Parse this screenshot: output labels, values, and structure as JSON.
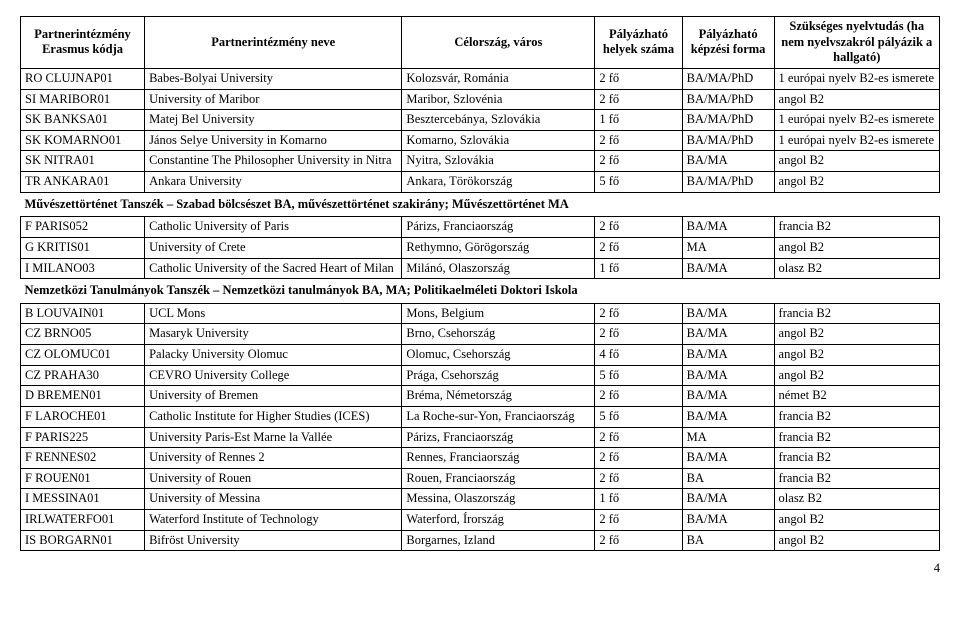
{
  "header": {
    "cols": [
      "Partnerintézmény Erasmus kódja",
      "Partnerintézmény neve",
      "Célország, város",
      "Pályázható helyek száma",
      "Pályázható képzési forma",
      "Szükséges nyelvtudás (ha nem nyelvszakról pályázik a hallgató)"
    ]
  },
  "sections": [
    {
      "title": null,
      "rows": [
        [
          "RO CLUJNAP01",
          "Babes-Bolyai University",
          "Kolozsvár, Románia",
          "2 fő",
          "BA/MA/PhD",
          "1 európai nyelv B2-es ismerete"
        ],
        [
          "SI MARIBOR01",
          "University of Maribor",
          "Maribor, Szlovénia",
          "2 fő",
          "BA/MA/PhD",
          "angol B2"
        ],
        [
          "SK BANKSA01",
          "Matej Bel University",
          "Besztercebánya, Szlovákia",
          "1 fő",
          "BA/MA/PhD",
          "1 európai nyelv B2-es ismerete"
        ],
        [
          "SK KOMARNO01",
          "János Selye University in Komarno",
          "Komarno, Szlovákia",
          "2 fő",
          "BA/MA/PhD",
          "1 európai nyelv B2-es ismerete"
        ],
        [
          "SK NITRA01",
          "Constantine The Philosopher University in Nitra",
          "Nyitra, Szlovákia",
          "2 fő",
          "BA/MA",
          "angol B2"
        ],
        [
          "TR ANKARA01",
          "Ankara University",
          "Ankara, Törökország",
          "5 fő",
          "BA/MA/PhD",
          "angol B2"
        ]
      ]
    },
    {
      "title": "Művészettörténet Tanszék – Szabad bölcsészet BA, művészettörténet szakirány; Művészettörténet MA",
      "rows": [
        [
          "F PARIS052",
          "Catholic University of Paris",
          "Párizs, Franciaország",
          "2 fő",
          "BA/MA",
          "francia B2"
        ],
        [
          "G KRITIS01",
          "University of Crete",
          "Rethymno, Görögország",
          "2 fő",
          "MA",
          "angol B2"
        ],
        [
          "I MILANO03",
          "Catholic University of the Sacred Heart of Milan",
          "Milánó, Olaszország",
          "1 fő",
          "BA/MA",
          "olasz B2"
        ]
      ]
    },
    {
      "title": "Nemzetközi Tanulmányok Tanszék – Nemzetközi tanulmányok BA, MA; Politikaelméleti Doktori Iskola",
      "rows": [
        [
          "B LOUVAIN01",
          "UCL Mons",
          "Mons, Belgium",
          "2 fő",
          "BA/MA",
          "francia B2"
        ],
        [
          "CZ BRNO05",
          "Masaryk University",
          "Brno, Csehország",
          "2 fő",
          "BA/MA",
          "angol B2"
        ],
        [
          "CZ OLOMUC01",
          "Palacky University Olomuc",
          "Olomuc, Csehország",
          "4 fő",
          "BA/MA",
          "angol B2"
        ],
        [
          "CZ PRAHA30",
          "CEVRO University College",
          "Prága, Csehország",
          "5 fő",
          "BA/MA",
          "angol B2"
        ],
        [
          "D BREMEN01",
          "University of Bremen",
          "Bréma, Németország",
          "2 fő",
          "BA/MA",
          "német B2"
        ],
        [
          "F LAROCHE01",
          "Catholic Institute for Higher Studies (ICES)",
          "La Roche-sur-Yon, Franciaország",
          "5 fő",
          "BA/MA",
          "francia B2"
        ],
        [
          "F PARIS225",
          "University Paris-Est Marne la Vallée",
          "Párizs, Franciaország",
          "2 fő",
          "MA",
          "francia B2"
        ],
        [
          "F RENNES02",
          "University of Rennes 2",
          "Rennes, Franciaország",
          "2 fő",
          "BA/MA",
          "francia B2"
        ],
        [
          "F ROUEN01",
          "University of Rouen",
          "Rouen, Franciaország",
          "2 fő",
          "BA",
          "francia B2"
        ],
        [
          "I MESSINA01",
          "University of Messina",
          "Messina, Olaszország",
          "1 fő",
          "BA/MA",
          "olasz B2"
        ],
        [
          "IRLWATERFO01",
          "Waterford Institute of Technology",
          "Waterford, Írország",
          "2 fő",
          "BA/MA",
          "angol B2"
        ],
        [
          "IS BORGARN01",
          "Bifröst University",
          "Borgarnes, Izland",
          "2 fő",
          "BA",
          "angol B2"
        ]
      ]
    }
  ],
  "page_number": "4"
}
